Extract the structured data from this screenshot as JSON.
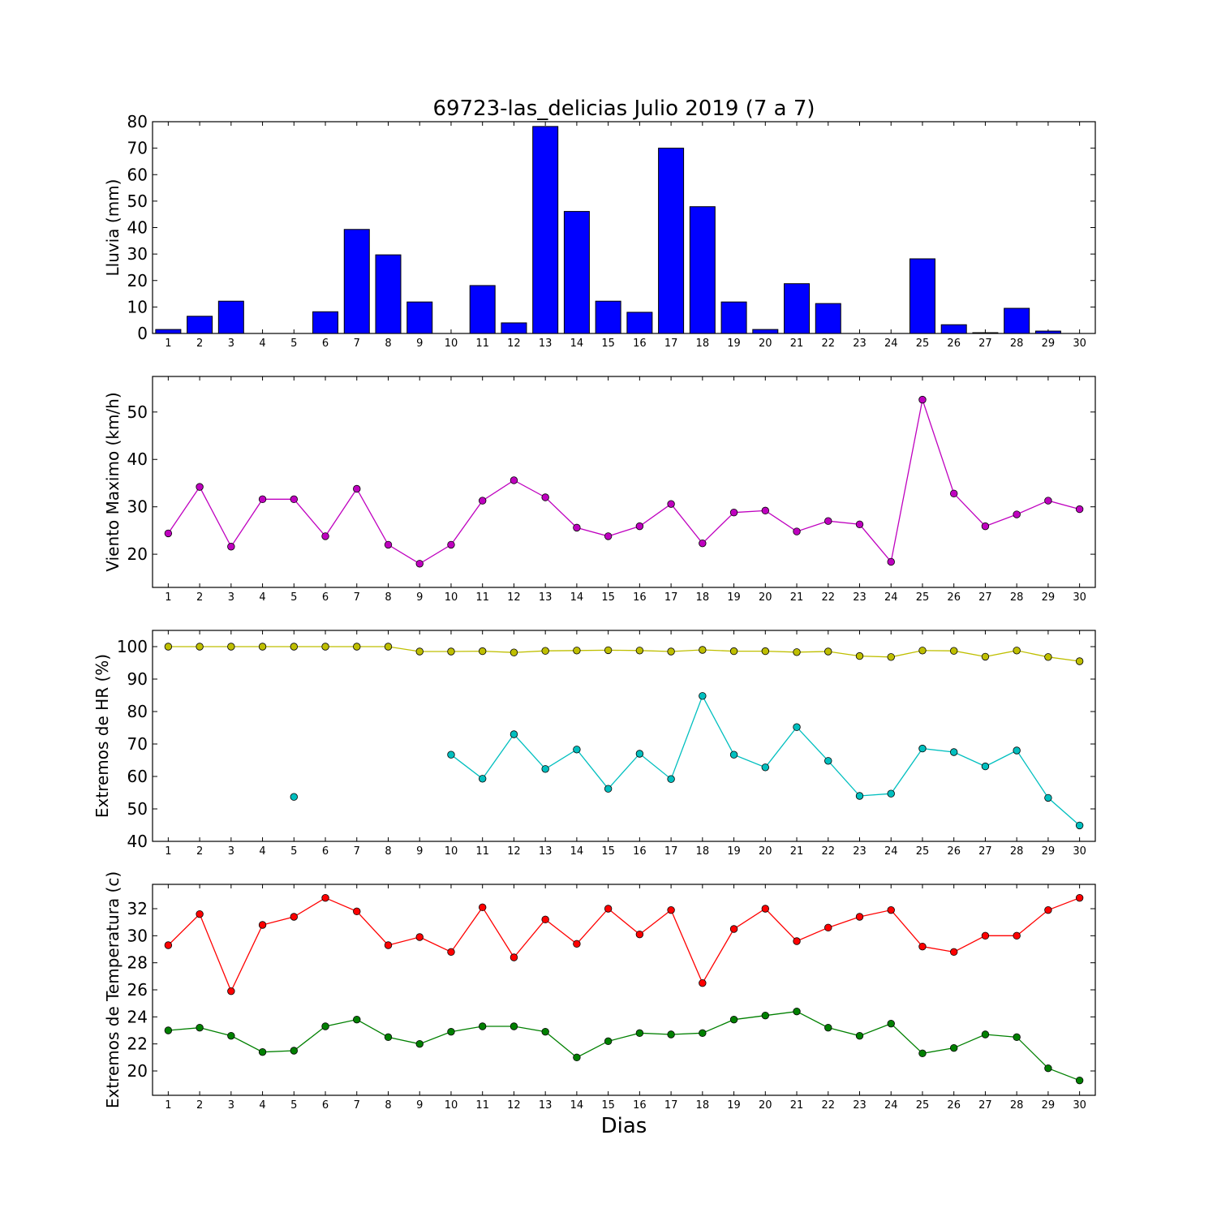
{
  "title": "69723-las_delicias Julio 2019  (7 a 7)",
  "xlabel": "Dias",
  "chart_data": [
    {
      "type": "bar",
      "ylabel": "Lluvia (mm)",
      "ylim": [
        0,
        80
      ],
      "yticks": [
        0,
        10,
        20,
        30,
        40,
        50,
        60,
        70,
        80
      ],
      "categories": [
        1,
        2,
        3,
        4,
        5,
        6,
        7,
        8,
        9,
        10,
        11,
        12,
        13,
        14,
        15,
        16,
        17,
        18,
        19,
        20,
        21,
        22,
        23,
        24,
        25,
        26,
        27,
        28,
        29,
        30
      ],
      "series": [
        {
          "color": "#0000ff",
          "values": [
            1.5,
            6.5,
            12.2,
            0,
            0,
            8.2,
            39.3,
            29.7,
            11.9,
            0,
            18.1,
            4.0,
            78.2,
            46.1,
            12.2,
            8.0,
            70.0,
            47.9,
            11.9,
            1.5,
            18.8,
            11.3,
            0,
            0,
            28.2,
            3.3,
            0.3,
            9.5,
            0.9,
            0
          ]
        }
      ]
    },
    {
      "type": "line",
      "ylabel": "Viento Maximo (km/h)",
      "ylim": [
        13,
        57.5
      ],
      "yticks": [
        20,
        30,
        40,
        50
      ],
      "categories": [
        1,
        2,
        3,
        4,
        5,
        6,
        7,
        8,
        9,
        10,
        11,
        12,
        13,
        14,
        15,
        16,
        17,
        18,
        19,
        20,
        21,
        22,
        23,
        24,
        25,
        26,
        27,
        28,
        29,
        30
      ],
      "series": [
        {
          "color": "#bf00bf",
          "values": [
            24.4,
            34.2,
            21.6,
            31.6,
            31.6,
            23.8,
            33.8,
            22.0,
            18.0,
            22.0,
            31.3,
            35.6,
            32.0,
            25.6,
            23.8,
            25.9,
            30.6,
            22.3,
            28.8,
            29.2,
            24.8,
            27.0,
            26.3,
            18.4,
            52.6,
            32.8,
            25.9,
            28.4,
            31.3,
            29.5
          ]
        }
      ]
    },
    {
      "type": "line",
      "ylabel": "Extremos de HR (%)",
      "ylim": [
        40,
        105
      ],
      "yticks": [
        40,
        50,
        60,
        70,
        80,
        90,
        100
      ],
      "categories": [
        1,
        2,
        3,
        4,
        5,
        6,
        7,
        8,
        9,
        10,
        11,
        12,
        13,
        14,
        15,
        16,
        17,
        18,
        19,
        20,
        21,
        22,
        23,
        24,
        25,
        26,
        27,
        28,
        29,
        30
      ],
      "series": [
        {
          "color": "#bfbf00",
          "values": [
            100,
            100,
            100,
            100,
            100,
            100,
            100,
            100,
            98.5,
            98.5,
            98.6,
            98.2,
            98.7,
            98.8,
            98.9,
            98.8,
            98.5,
            99.0,
            98.6,
            98.6,
            98.3,
            98.5,
            97.1,
            96.8,
            98.8,
            98.7,
            96.9,
            98.8,
            96.8,
            95.5
          ]
        },
        {
          "color": "#00bfbf",
          "values": [
            null,
            null,
            null,
            null,
            53.7,
            null,
            null,
            null,
            null,
            66.7,
            59.3,
            73.0,
            62.3,
            68.3,
            56.2,
            67.0,
            59.2,
            84.8,
            66.7,
            62.8,
            75.2,
            64.8,
            54.0,
            54.7,
            68.6,
            67.5,
            63.1,
            68.0,
            53.4,
            44.9
          ]
        }
      ]
    },
    {
      "type": "line",
      "ylabel": "Extremos de Temperatura (c)",
      "ylim": [
        18.2,
        33.8
      ],
      "yticks": [
        20,
        22,
        24,
        26,
        28,
        30,
        32
      ],
      "categories": [
        1,
        2,
        3,
        4,
        5,
        6,
        7,
        8,
        9,
        10,
        11,
        12,
        13,
        14,
        15,
        16,
        17,
        18,
        19,
        20,
        21,
        22,
        23,
        24,
        25,
        26,
        27,
        28,
        29,
        30
      ],
      "series": [
        {
          "color": "#ff0000",
          "values": [
            29.3,
            31.6,
            25.9,
            30.8,
            31.4,
            32.8,
            31.8,
            29.3,
            29.9,
            28.8,
            32.1,
            28.4,
            31.2,
            29.4,
            32.0,
            30.1,
            31.9,
            26.5,
            30.5,
            32.0,
            29.6,
            30.6,
            31.4,
            31.9,
            29.2,
            28.8,
            30.0,
            30.0,
            31.9,
            32.8
          ]
        },
        {
          "color": "#008000",
          "values": [
            23.0,
            23.2,
            22.6,
            21.4,
            21.5,
            23.3,
            23.8,
            22.5,
            22.0,
            22.9,
            23.3,
            23.3,
            22.9,
            21.0,
            22.2,
            22.8,
            22.7,
            22.8,
            23.8,
            24.1,
            24.4,
            23.2,
            22.6,
            23.5,
            21.3,
            21.7,
            22.7,
            22.5,
            20.2,
            19.3
          ]
        }
      ]
    }
  ]
}
